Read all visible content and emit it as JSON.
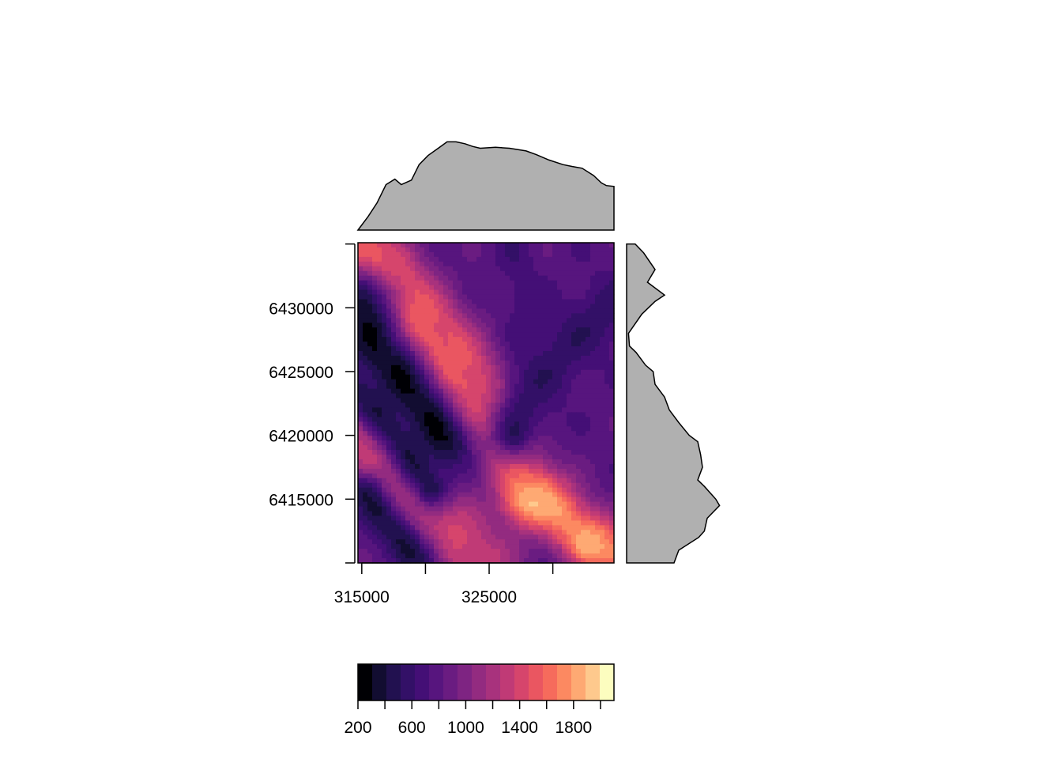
{
  "chart_data": {
    "type": "heatmap",
    "title": "",
    "xlabel": "",
    "ylabel": "",
    "x_axis": {
      "range": [
        314700,
        334800
      ],
      "ticks": [
        315000,
        320000,
        325000,
        330000
      ],
      "tick_labels": [
        "315000",
        "",
        "325000",
        ""
      ]
    },
    "y_axis": {
      "range": [
        6410000,
        6435100
      ],
      "ticks": [
        6410000,
        6415000,
        6420000,
        6425000,
        6430000,
        6435000
      ],
      "tick_labels": [
        "",
        "6415000",
        "6420000",
        "6425000",
        "6430000",
        ""
      ]
    },
    "palette": [
      "#000004",
      "#120d31",
      "#221150",
      "#331067",
      "#440f76",
      "#57157e",
      "#6a1c81",
      "#7e2482",
      "#932b80",
      "#a8327d",
      "#c03a76",
      "#d6456c",
      "#ea5661",
      "#f66b5c",
      "#fc8961",
      "#fea973",
      "#fec98d",
      "#fcfdbf"
    ],
    "legend": {
      "placement": "bottom",
      "range": [
        200,
        2100
      ],
      "ticks": [
        200,
        400,
        600,
        800,
        1000,
        1200,
        1400,
        1600,
        1800,
        2000
      ],
      "tick_labels": [
        "200",
        "",
        "600",
        "",
        "1000",
        "",
        "1400",
        "",
        "1800",
        ""
      ]
    },
    "raster_features": [
      {
        "type": "ridge",
        "path": [
          [
            315300,
            6434300
          ],
          [
            317500,
            6431000
          ],
          [
            320500,
            6427000
          ],
          [
            323500,
            6422000
          ],
          [
            326500,
            6418500
          ],
          [
            328500,
            6416000
          ],
          [
            331500,
            6413000
          ],
          [
            334500,
            6410800
          ]
        ],
        "value": 1750,
        "width": 1600
      },
      {
        "type": "ridge",
        "path": [
          [
            317000,
            6432000
          ],
          [
            322000,
            6426000
          ],
          [
            325000,
            6422500
          ]
        ],
        "value": 1550,
        "width": 2000
      },
      {
        "type": "ridge",
        "path": [
          [
            314900,
            6420000
          ],
          [
            317500,
            6417500
          ],
          [
            321000,
            6413500
          ],
          [
            324000,
            6410200
          ]
        ],
        "value": 1400,
        "width": 2200
      },
      {
        "type": "peak",
        "center": [
          327300,
          6418800
        ],
        "value": 1980,
        "radius": 900
      },
      {
        "type": "peak",
        "center": [
          328000,
          6414900
        ],
        "value": 1900,
        "radius": 1400
      },
      {
        "type": "peak",
        "center": [
          332800,
          6411500
        ],
        "value": 1850,
        "radius": 900
      },
      {
        "type": "peak",
        "center": [
          323200,
          6423000
        ],
        "value": 1700,
        "radius": 900
      },
      {
        "type": "peak",
        "center": [
          318000,
          6431000
        ],
        "value": 1650,
        "radius": 800
      },
      {
        "type": "valley",
        "path": [
          [
            315000,
            6430500
          ],
          [
            316200,
            6427000
          ],
          [
            318800,
            6423500
          ],
          [
            321500,
            6419500
          ]
        ],
        "value": 330,
        "width": 1800
      },
      {
        "type": "valley",
        "path": [
          [
            315000,
            6423500
          ],
          [
            317500,
            6420500
          ],
          [
            320500,
            6416000
          ]
        ],
        "value": 420,
        "width": 1200
      },
      {
        "type": "valley",
        "path": [
          [
            315200,
            6415500
          ],
          [
            317500,
            6412500
          ],
          [
            319500,
            6410200
          ]
        ],
        "value": 420,
        "width": 1100
      },
      {
        "type": "valley",
        "path": [
          [
            334500,
            6430000
          ],
          [
            331000,
            6427000
          ],
          [
            328500,
            6424000
          ],
          [
            327000,
            6420000
          ]
        ],
        "value": 560,
        "width": 1800
      },
      {
        "type": "valley",
        "path": [
          [
            327000,
            6434800
          ],
          [
            328000,
            6430000
          ],
          [
            328500,
            6426000
          ]
        ],
        "value": 650,
        "width": 1000
      }
    ],
    "marginal_profiles": {
      "top": {
        "x": [
          314700,
          315500,
          316200,
          316900,
          317600,
          318100,
          318900,
          319500,
          320200,
          321000,
          321700,
          322400,
          323100,
          323700,
          324300,
          325500,
          326600,
          327900,
          328700,
          329700,
          330800,
          331500,
          332300,
          333200,
          333800,
          334200,
          334800
        ],
        "y": [
          0.0,
          0.15,
          0.3,
          0.5,
          0.56,
          0.5,
          0.55,
          0.72,
          0.82,
          0.9,
          0.97,
          0.97,
          0.95,
          0.92,
          0.9,
          0.91,
          0.9,
          0.87,
          0.83,
          0.77,
          0.72,
          0.7,
          0.68,
          0.6,
          0.52,
          0.49,
          0.48
        ]
      },
      "right": {
        "y": [
          6435000,
          6434300,
          6433000,
          6432000,
          6431000,
          6430500,
          6429500,
          6428000,
          6427000,
          6426500,
          6425500,
          6425000,
          6424000,
          6423000,
          6422000,
          6421000,
          6420000,
          6419500,
          6418500,
          6417500,
          6416500,
          6416000,
          6415000,
          6414500,
          6413500,
          6412500,
          6412000,
          6411000,
          6410000
        ],
        "x": [
          0.09,
          0.18,
          0.3,
          0.22,
          0.4,
          0.3,
          0.16,
          0.02,
          0.03,
          0.1,
          0.2,
          0.28,
          0.3,
          0.4,
          0.45,
          0.55,
          0.66,
          0.75,
          0.78,
          0.8,
          0.75,
          0.82,
          0.94,
          0.98,
          0.85,
          0.82,
          0.76,
          0.55,
          0.5
        ]
      }
    }
  }
}
